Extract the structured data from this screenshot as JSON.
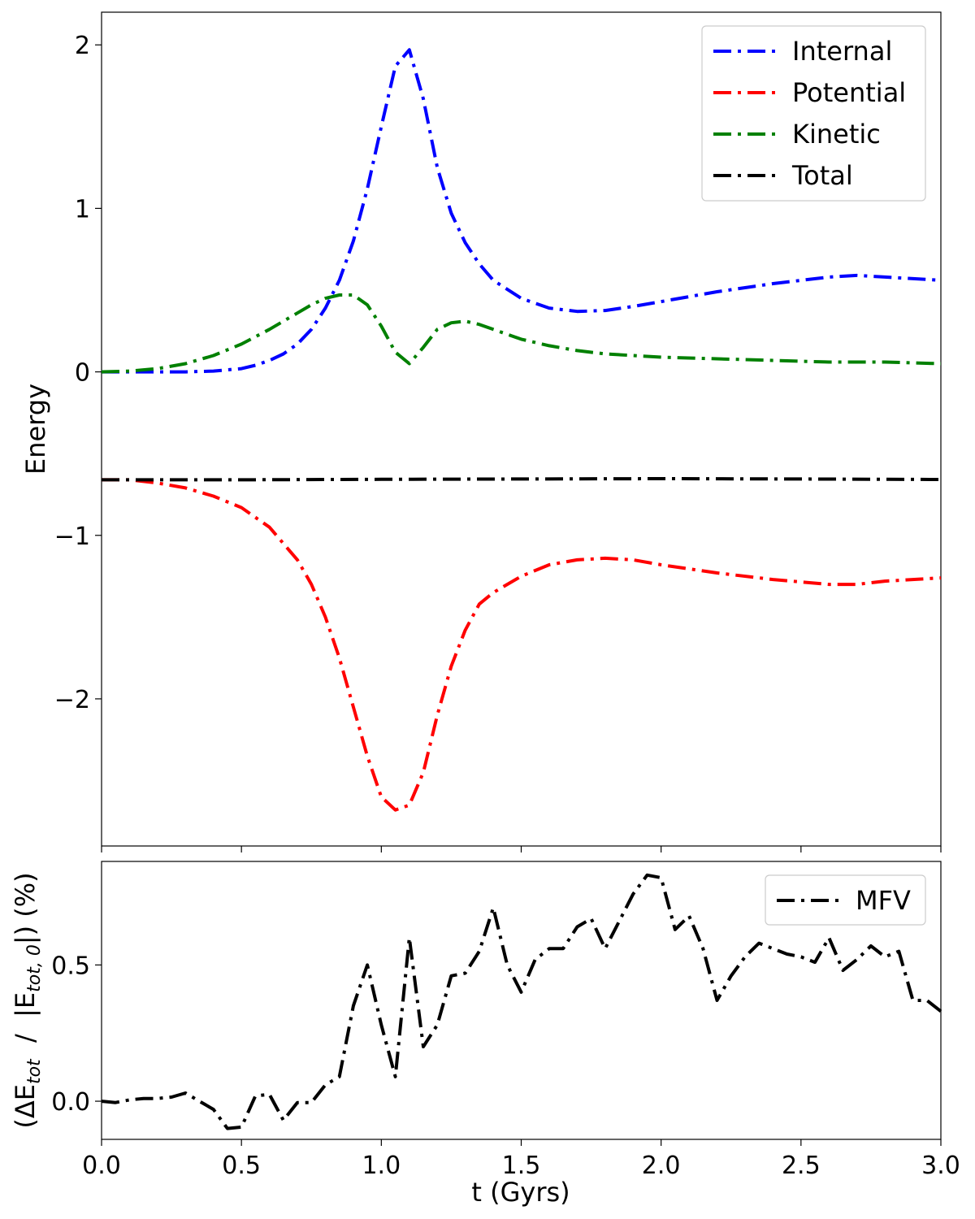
{
  "chart_data": [
    {
      "type": "line",
      "title": "",
      "xlabel": "",
      "ylabel": "Energy",
      "xlim": [
        0.0,
        3.0
      ],
      "ylim": [
        -2.9,
        2.2
      ],
      "yticks": [
        -2,
        -1,
        0,
        1,
        2
      ],
      "ytick_labels": [
        "−2",
        "−1",
        "0",
        "1",
        "2"
      ],
      "xticks": [
        0.0,
        0.5,
        1.0,
        1.5,
        2.0,
        2.5,
        3.0
      ],
      "grid": false,
      "legend": "top-right",
      "series": [
        {
          "name": "Internal",
          "color": "#0000ff",
          "x": [
            0.0,
            0.1,
            0.2,
            0.3,
            0.4,
            0.5,
            0.55,
            0.6,
            0.65,
            0.7,
            0.75,
            0.8,
            0.85,
            0.9,
            0.95,
            1.0,
            1.05,
            1.1,
            1.15,
            1.2,
            1.25,
            1.3,
            1.35,
            1.4,
            1.5,
            1.6,
            1.7,
            1.8,
            1.9,
            2.0,
            2.2,
            2.4,
            2.6,
            2.7,
            2.8,
            3.0
          ],
          "y": [
            0.0,
            0.0,
            0.0,
            0.0,
            0.005,
            0.02,
            0.04,
            0.07,
            0.11,
            0.17,
            0.26,
            0.39,
            0.56,
            0.8,
            1.12,
            1.5,
            1.87,
            1.97,
            1.67,
            1.25,
            0.97,
            0.79,
            0.66,
            0.56,
            0.45,
            0.39,
            0.37,
            0.375,
            0.4,
            0.43,
            0.49,
            0.54,
            0.58,
            0.59,
            0.58,
            0.56
          ]
        },
        {
          "name": "Potential",
          "color": "#ff0000",
          "x": [
            0.0,
            0.1,
            0.2,
            0.3,
            0.4,
            0.5,
            0.6,
            0.7,
            0.75,
            0.8,
            0.85,
            0.9,
            0.95,
            1.0,
            1.05,
            1.1,
            1.15,
            1.2,
            1.25,
            1.3,
            1.35,
            1.4,
            1.5,
            1.6,
            1.7,
            1.8,
            1.9,
            2.0,
            2.2,
            2.4,
            2.6,
            2.7,
            2.8,
            3.0
          ],
          "y": [
            -0.66,
            -0.66,
            -0.68,
            -0.71,
            -0.76,
            -0.83,
            -0.95,
            -1.15,
            -1.3,
            -1.5,
            -1.75,
            -2.05,
            -2.35,
            -2.6,
            -2.68,
            -2.65,
            -2.45,
            -2.1,
            -1.8,
            -1.58,
            -1.42,
            -1.35,
            -1.25,
            -1.18,
            -1.15,
            -1.14,
            -1.15,
            -1.18,
            -1.23,
            -1.27,
            -1.3,
            -1.3,
            -1.28,
            -1.26
          ]
        },
        {
          "name": "Kinetic",
          "color": "#008000",
          "x": [
            0.0,
            0.1,
            0.2,
            0.3,
            0.4,
            0.5,
            0.6,
            0.7,
            0.75,
            0.8,
            0.85,
            0.9,
            0.95,
            1.0,
            1.05,
            1.1,
            1.15,
            1.2,
            1.25,
            1.3,
            1.35,
            1.4,
            1.5,
            1.6,
            1.7,
            1.8,
            2.0,
            2.2,
            2.4,
            2.6,
            2.8,
            3.0
          ],
          "y": [
            0.0,
            0.005,
            0.02,
            0.05,
            0.1,
            0.17,
            0.26,
            0.36,
            0.41,
            0.45,
            0.47,
            0.47,
            0.41,
            0.28,
            0.12,
            0.05,
            0.15,
            0.26,
            0.3,
            0.31,
            0.29,
            0.26,
            0.2,
            0.16,
            0.13,
            0.11,
            0.09,
            0.08,
            0.07,
            0.06,
            0.06,
            0.05
          ]
        },
        {
          "name": "Total",
          "color": "#000000",
          "x": [
            0.0,
            0.5,
            1.0,
            1.5,
            2.0,
            2.5,
            3.0
          ],
          "y": [
            -0.66,
            -0.66,
            -0.657,
            -0.655,
            -0.653,
            -0.655,
            -0.658
          ]
        }
      ]
    },
    {
      "type": "line",
      "title": "",
      "xlabel": "t (Gyrs)",
      "ylabel_parts": [
        "(ΔE",
        "tot",
        "  /  |E",
        "tot, 0",
        "|) (%)"
      ],
      "xlim": [
        0.0,
        3.0
      ],
      "ylim": [
        -0.14,
        0.88
      ],
      "yticks": [
        0.0,
        0.5
      ],
      "ytick_labels": [
        "0.0",
        "0.5"
      ],
      "xticks": [
        0.0,
        0.5,
        1.0,
        1.5,
        2.0,
        2.5,
        3.0
      ],
      "xtick_labels": [
        "0.0",
        "0.5",
        "1.0",
        "1.5",
        "2.0",
        "2.5",
        "3.0"
      ],
      "grid": false,
      "legend": "top-right",
      "series": [
        {
          "name": "MFV",
          "color": "#000000",
          "x": [
            0.0,
            0.05,
            0.1,
            0.15,
            0.2,
            0.25,
            0.3,
            0.35,
            0.4,
            0.45,
            0.5,
            0.55,
            0.6,
            0.65,
            0.7,
            0.75,
            0.8,
            0.85,
            0.9,
            0.95,
            1.0,
            1.05,
            1.1,
            1.15,
            1.2,
            1.25,
            1.3,
            1.35,
            1.4,
            1.45,
            1.5,
            1.55,
            1.6,
            1.65,
            1.7,
            1.75,
            1.8,
            1.85,
            1.9,
            1.95,
            2.0,
            2.05,
            2.1,
            2.15,
            2.2,
            2.25,
            2.3,
            2.35,
            2.4,
            2.45,
            2.5,
            2.55,
            2.6,
            2.65,
            2.7,
            2.75,
            2.8,
            2.85,
            2.9,
            2.95,
            3.0
          ],
          "y": [
            0.0,
            -0.005,
            0.005,
            0.01,
            0.01,
            0.015,
            0.03,
            0.0,
            -0.03,
            -0.1,
            -0.095,
            0.02,
            0.025,
            -0.07,
            -0.005,
            -0.005,
            0.06,
            0.09,
            0.35,
            0.5,
            0.28,
            0.09,
            0.6,
            0.2,
            0.28,
            0.46,
            0.47,
            0.55,
            0.71,
            0.5,
            0.4,
            0.52,
            0.56,
            0.56,
            0.64,
            0.67,
            0.56,
            0.66,
            0.76,
            0.83,
            0.82,
            0.63,
            0.68,
            0.56,
            0.37,
            0.46,
            0.53,
            0.58,
            0.56,
            0.54,
            0.53,
            0.51,
            0.6,
            0.48,
            0.52,
            0.57,
            0.53,
            0.55,
            0.37,
            0.37,
            0.33
          ]
        }
      ]
    }
  ]
}
